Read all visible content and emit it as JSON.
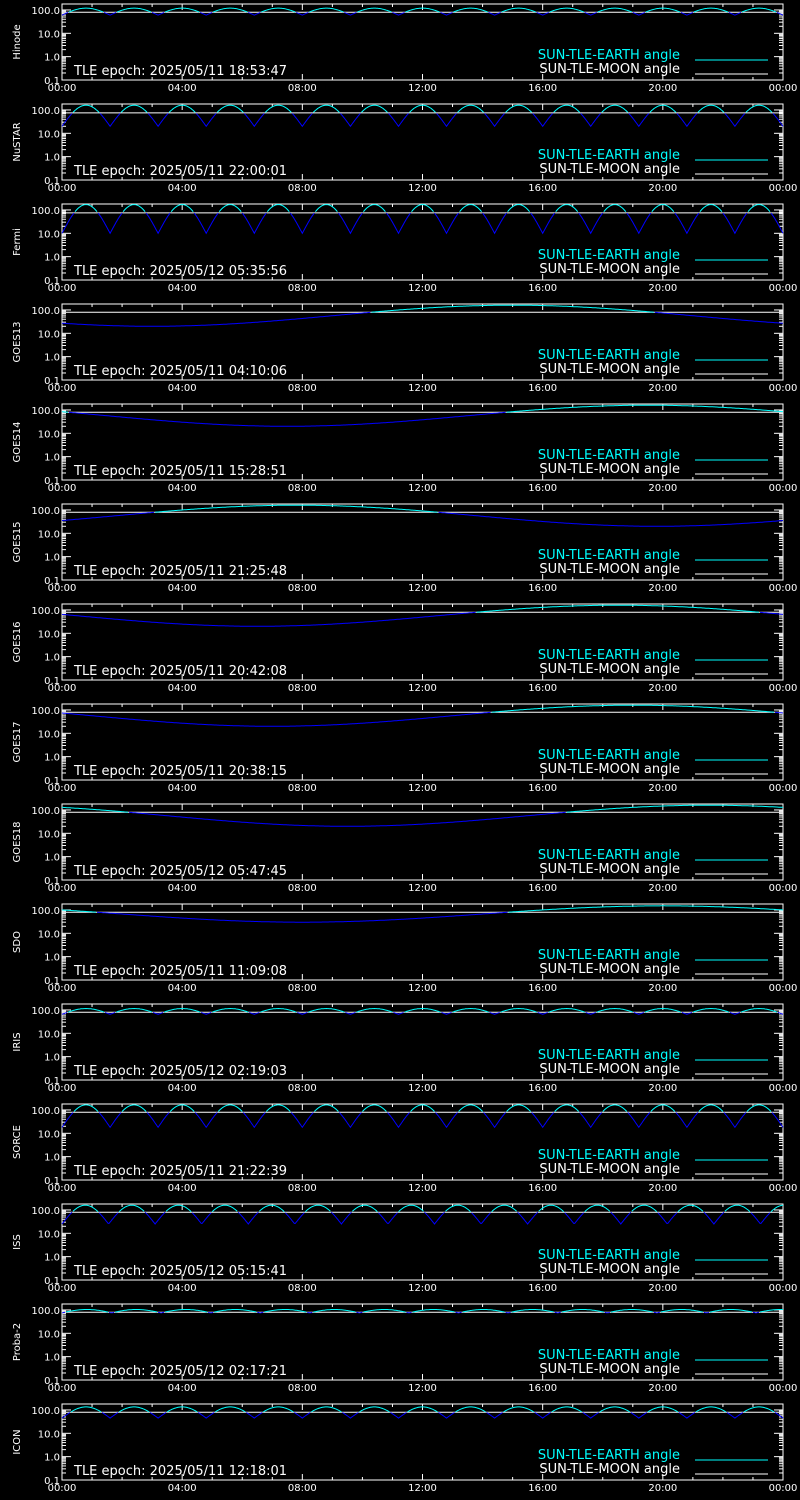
{
  "colors": {
    "background": "#000000",
    "axis": "#ffffff",
    "earth": "#00ffff",
    "moon": "#ffffff",
    "sun_tle": "#0000ff"
  },
  "legend": {
    "earth_label": "SUN-TLE-EARTH angle",
    "moon_label": "SUN-TLE-MOON angle"
  },
  "chart_data": [
    {
      "type": "line",
      "panel": "Hinode",
      "epoch_text": "TLE epoch: 2025/05/11 18:53:47",
      "x_ticks": [
        "00:00",
        "04:00",
        "08:00",
        "12:00",
        "16:00",
        "20:00",
        "00:00"
      ],
      "y_ticks": [
        "100.0",
        "10.0",
        "1.0",
        "0.1"
      ],
      "y_scale": "log",
      "ylim": [
        0.1,
        180
      ],
      "series": [
        {
          "name": "SUN-TLE-EARTH angle",
          "pattern": "periodic",
          "period_h": 1.6,
          "min": 60,
          "max": 120
        },
        {
          "name": "SUN-TLE-MOON angle",
          "pattern": "flat",
          "value": 80
        }
      ]
    },
    {
      "type": "line",
      "panel": "NuSTAR",
      "epoch_text": "TLE epoch: 2025/05/11 22:00:01",
      "x_ticks": [
        "00:00",
        "04:00",
        "08:00",
        "12:00",
        "16:00",
        "20:00",
        "00:00"
      ],
      "y_ticks": [
        "100.0",
        "10.0",
        "1.0",
        "0.1"
      ],
      "y_scale": "log",
      "ylim": [
        0.1,
        180
      ],
      "series": [
        {
          "name": "SUN-TLE-EARTH angle",
          "pattern": "periodic",
          "period_h": 1.6,
          "min": 20,
          "max": 160
        },
        {
          "name": "SUN-TLE-MOON angle",
          "pattern": "flat",
          "value": 75
        }
      ]
    },
    {
      "type": "line",
      "panel": "Fermi",
      "epoch_text": "TLE epoch: 2025/05/12 05:35:56",
      "x_ticks": [
        "00:00",
        "04:00",
        "08:00",
        "12:00",
        "16:00",
        "20:00",
        "00:00"
      ],
      "y_ticks": [
        "100.0",
        "10.0",
        "1.0",
        "0.1"
      ],
      "y_scale": "log",
      "ylim": [
        0.1,
        180
      ],
      "series": [
        {
          "name": "SUN-TLE-EARTH angle",
          "pattern": "periodic",
          "period_h": 1.6,
          "min": 10,
          "max": 170
        },
        {
          "name": "SUN-TLE-MOON angle",
          "pattern": "flat",
          "value": 75
        }
      ]
    },
    {
      "type": "line",
      "panel": "GOES13",
      "epoch_text": "TLE epoch: 2025/05/11 04:10:06",
      "x_ticks": [
        "00:00",
        "04:00",
        "08:00",
        "12:00",
        "16:00",
        "20:00",
        "00:00"
      ],
      "y_ticks": [
        "100.0",
        "10.0",
        "1.0",
        "0.1"
      ],
      "y_scale": "log",
      "ylim": [
        0.1,
        180
      ],
      "series": [
        {
          "name": "SUN-TLE-EARTH angle",
          "pattern": "daily",
          "min": 20,
          "max": 160,
          "min_h": 3.0
        },
        {
          "name": "SUN-TLE-MOON angle",
          "pattern": "flat",
          "value": 80
        }
      ]
    },
    {
      "type": "line",
      "panel": "GOES14",
      "epoch_text": "TLE epoch: 2025/05/11 15:28:51",
      "x_ticks": [
        "00:00",
        "04:00",
        "08:00",
        "12:00",
        "16:00",
        "20:00",
        "00:00"
      ],
      "y_ticks": [
        "100.0",
        "10.0",
        "1.0",
        "0.1"
      ],
      "y_scale": "log",
      "ylim": [
        0.1,
        180
      ],
      "series": [
        {
          "name": "SUN-TLE-EARTH angle",
          "pattern": "daily",
          "min": 20,
          "max": 160,
          "min_h": 7.5
        },
        {
          "name": "SUN-TLE-MOON angle",
          "pattern": "flat",
          "value": 80
        }
      ]
    },
    {
      "type": "line",
      "panel": "GOES15",
      "epoch_text": "TLE epoch: 2025/05/11 21:25:48",
      "x_ticks": [
        "00:00",
        "04:00",
        "08:00",
        "12:00",
        "16:00",
        "20:00",
        "00:00"
      ],
      "y_ticks": [
        "100.0",
        "10.0",
        "1.0",
        "0.1"
      ],
      "y_scale": "log",
      "ylim": [
        0.1,
        180
      ],
      "series": [
        {
          "name": "SUN-TLE-EARTH angle",
          "pattern": "daily",
          "min": 20,
          "max": 160,
          "min_h": 19.8
        },
        {
          "name": "SUN-TLE-MOON angle",
          "pattern": "flat",
          "value": 80
        }
      ]
    },
    {
      "type": "line",
      "panel": "GOES16",
      "epoch_text": "TLE epoch: 2025/05/11 20:42:08",
      "x_ticks": [
        "00:00",
        "04:00",
        "08:00",
        "12:00",
        "16:00",
        "20:00",
        "00:00"
      ],
      "y_ticks": [
        "100.0",
        "10.0",
        "1.0",
        "0.1"
      ],
      "y_scale": "log",
      "ylim": [
        0.1,
        180
      ],
      "series": [
        {
          "name": "SUN-TLE-EARTH angle",
          "pattern": "daily",
          "min": 20,
          "max": 160,
          "min_h": 6.5
        },
        {
          "name": "SUN-TLE-MOON angle",
          "pattern": "flat",
          "value": 80
        }
      ]
    },
    {
      "type": "line",
      "panel": "GOES17",
      "epoch_text": "TLE epoch: 2025/05/11 20:38:15",
      "x_ticks": [
        "00:00",
        "04:00",
        "08:00",
        "12:00",
        "16:00",
        "20:00",
        "00:00"
      ],
      "y_ticks": [
        "100.0",
        "10.0",
        "1.0",
        "0.1"
      ],
      "y_scale": "log",
      "ylim": [
        0.1,
        180
      ],
      "series": [
        {
          "name": "SUN-TLE-EARTH angle",
          "pattern": "daily",
          "min": 20,
          "max": 160,
          "min_h": 7.0
        },
        {
          "name": "SUN-TLE-MOON angle",
          "pattern": "flat",
          "value": 80
        }
      ]
    },
    {
      "type": "line",
      "panel": "GOES18",
      "epoch_text": "TLE epoch: 2025/05/12 05:47:45",
      "x_ticks": [
        "00:00",
        "04:00",
        "08:00",
        "12:00",
        "16:00",
        "20:00",
        "00:00"
      ],
      "y_ticks": [
        "100.0",
        "10.0",
        "1.0",
        "0.1"
      ],
      "y_scale": "log",
      "ylim": [
        0.1,
        180
      ],
      "series": [
        {
          "name": "SUN-TLE-EARTH angle",
          "pattern": "daily",
          "min": 20,
          "max": 160,
          "min_h": 9.5
        },
        {
          "name": "SUN-TLE-MOON angle",
          "pattern": "flat",
          "value": 80
        }
      ]
    },
    {
      "type": "line",
      "panel": "SDO",
      "epoch_text": "TLE epoch: 2025/05/11 11:09:08",
      "x_ticks": [
        "00:00",
        "04:00",
        "08:00",
        "12:00",
        "16:00",
        "20:00",
        "00:00"
      ],
      "y_ticks": [
        "100.0",
        "10.0",
        "1.0",
        "0.1"
      ],
      "y_scale": "log",
      "ylim": [
        0.1,
        180
      ],
      "series": [
        {
          "name": "SUN-TLE-EARTH angle",
          "pattern": "daily",
          "min": 30,
          "max": 150,
          "min_h": 8.0
        },
        {
          "name": "SUN-TLE-MOON angle",
          "pattern": "flat",
          "value": 80
        }
      ]
    },
    {
      "type": "line",
      "panel": "IRIS",
      "epoch_text": "TLE epoch: 2025/05/12 02:19:03",
      "x_ticks": [
        "00:00",
        "04:00",
        "08:00",
        "12:00",
        "16:00",
        "20:00",
        "00:00"
      ],
      "y_ticks": [
        "100.0",
        "10.0",
        "1.0",
        "0.1"
      ],
      "y_scale": "log",
      "ylim": [
        0.1,
        180
      ],
      "series": [
        {
          "name": "SUN-TLE-EARTH angle",
          "pattern": "periodic",
          "period_h": 1.6,
          "min": 65,
          "max": 115
        },
        {
          "name": "SUN-TLE-MOON angle",
          "pattern": "flat",
          "value": 80
        }
      ]
    },
    {
      "type": "line",
      "panel": "SORCE",
      "epoch_text": "TLE epoch: 2025/05/11 21:22:39",
      "x_ticks": [
        "00:00",
        "04:00",
        "08:00",
        "12:00",
        "16:00",
        "20:00",
        "00:00"
      ],
      "y_ticks": [
        "100.0",
        "10.0",
        "1.0",
        "0.1"
      ],
      "y_scale": "log",
      "ylim": [
        0.1,
        180
      ],
      "series": [
        {
          "name": "SUN-TLE-EARTH angle",
          "pattern": "periodic",
          "period_h": 1.6,
          "min": 18,
          "max": 165
        },
        {
          "name": "SUN-TLE-MOON angle",
          "pattern": "flat",
          "value": 80
        }
      ]
    },
    {
      "type": "line",
      "panel": "ISS",
      "epoch_text": "TLE epoch: 2025/05/12 05:15:41",
      "x_ticks": [
        "00:00",
        "04:00",
        "08:00",
        "12:00",
        "16:00",
        "20:00",
        "00:00"
      ],
      "y_ticks": [
        "100.0",
        "10.0",
        "1.0",
        "0.1"
      ],
      "y_scale": "log",
      "ylim": [
        0.1,
        180
      ],
      "series": [
        {
          "name": "SUN-TLE-EARTH angle",
          "pattern": "periodic",
          "period_h": 1.55,
          "min": 25,
          "max": 160
        },
        {
          "name": "SUN-TLE-MOON angle",
          "pattern": "flat",
          "value": 80
        }
      ]
    },
    {
      "type": "line",
      "panel": "Proba-2",
      "epoch_text": "TLE epoch: 2025/05/12 02:17:21",
      "x_ticks": [
        "00:00",
        "04:00",
        "08:00",
        "12:00",
        "16:00",
        "20:00",
        "00:00"
      ],
      "y_ticks": [
        "100.0",
        "10.0",
        "1.0",
        "0.1"
      ],
      "y_scale": "log",
      "ylim": [
        0.1,
        180
      ],
      "series": [
        {
          "name": "SUN-TLE-EARTH angle",
          "pattern": "periodic",
          "period_h": 1.65,
          "min": 75,
          "max": 105
        },
        {
          "name": "SUN-TLE-MOON angle",
          "pattern": "flat",
          "value": 80
        }
      ]
    },
    {
      "type": "line",
      "panel": "ICON",
      "epoch_text": "TLE epoch: 2025/05/11 12:18:01",
      "x_ticks": [
        "00:00",
        "04:00",
        "08:00",
        "12:00",
        "16:00",
        "20:00",
        "00:00"
      ],
      "y_ticks": [
        "100.0",
        "10.0",
        "1.0",
        "0.1"
      ],
      "y_scale": "log",
      "ylim": [
        0.1,
        180
      ],
      "series": [
        {
          "name": "SUN-TLE-EARTH angle",
          "pattern": "periodic",
          "period_h": 1.6,
          "min": 45,
          "max": 135
        },
        {
          "name": "SUN-TLE-MOON angle",
          "pattern": "flat",
          "value": 80
        }
      ]
    }
  ]
}
